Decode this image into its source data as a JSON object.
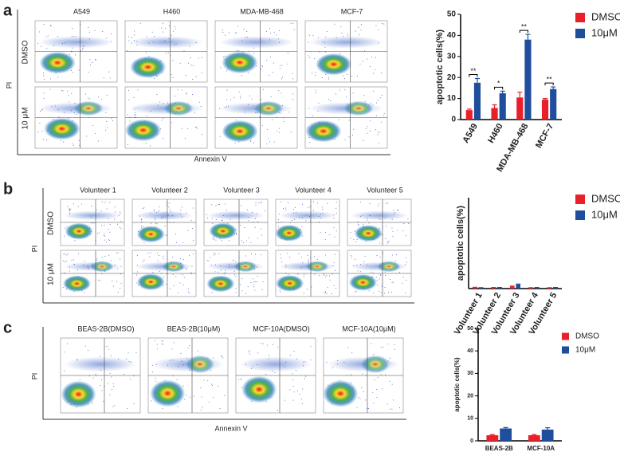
{
  "chart_data": [
    {
      "type": "bar",
      "ylabel": "apoptotic cells(%)",
      "categories": [
        "A549",
        "H460",
        "MDA-MB-468",
        "MCF-7"
      ],
      "series": [
        {
          "name": "DMSO",
          "color": "#e8202a",
          "values": [
            4.5,
            5.5,
            10.5,
            9.5
          ],
          "errors": [
            0.5,
            1.5,
            2.5,
            0.5
          ]
        },
        {
          "name": "10μM",
          "color": "#1f4e9c",
          "values": [
            17.5,
            12.5,
            38,
            14.5
          ],
          "errors": [
            2,
            1,
            2.5,
            1
          ]
        }
      ],
      "annotations": [
        "**",
        "*",
        "**",
        "**"
      ],
      "ylim": [
        0,
        50
      ],
      "yticks": [
        0,
        10,
        20,
        30,
        40,
        50
      ]
    },
    {
      "type": "bar",
      "ylabel": "apoptotic cells(%)",
      "categories": [
        "Volunteer 1",
        "Volunteer 2",
        "Volunteer 3",
        "Volunteer 4",
        "Volunteer 5"
      ],
      "series": [
        {
          "name": "DMSO",
          "color": "#e8202a",
          "values": [
            0.6,
            0.5,
            1.2,
            0.4,
            0.4
          ],
          "errors": [
            0.1,
            0.1,
            0.2,
            0.1,
            0.1
          ]
        },
        {
          "name": "10μM",
          "color": "#1f4e9c",
          "values": [
            0.4,
            0.5,
            2.2,
            0.5,
            0.5
          ],
          "errors": [
            0.1,
            0.1,
            0.3,
            0.1,
            0.1
          ]
        }
      ],
      "ylim": [
        0,
        50
      ]
    },
    {
      "type": "bar",
      "ylabel": "apoptotic cells(%)",
      "categories": [
        "BEAS-2B",
        "MCF-10A"
      ],
      "series": [
        {
          "name": "DMSO",
          "color": "#e8202a",
          "values": [
            2.5,
            2.5
          ],
          "errors": [
            0.3,
            0.3
          ]
        },
        {
          "name": "10μM",
          "color": "#1f4e9c",
          "values": [
            5.5,
            5
          ],
          "errors": [
            0.4,
            0.8
          ]
        }
      ],
      "ylim": [
        0,
        50
      ],
      "yticks": [
        0,
        10,
        20,
        30,
        40,
        50
      ]
    }
  ],
  "flow": [
    {
      "label": "a",
      "columns": [
        "A549",
        "H460",
        "MDA-MB-468",
        "MCF-7"
      ],
      "rows": [
        "DMSO",
        "10 μM"
      ],
      "xlabel": "Annexin V",
      "ylabel": "PI"
    },
    {
      "label": "b",
      "columns": [
        "Volunteer 1",
        "Volunteer 2",
        "Volunteer 3",
        "Volunteer 4",
        "Volunteer 5"
      ],
      "rows": [
        "DMSO",
        "10 μM"
      ],
      "ylabel": "PI"
    },
    {
      "label": "c",
      "columns": [
        "BEAS-2B(DMSO)",
        "BEAS-2B(10μM)",
        "MCF-10A(DMSO)",
        "MCF-10A(10μM)"
      ],
      "xlabel": "Annexin V",
      "ylabel": "PI"
    }
  ]
}
